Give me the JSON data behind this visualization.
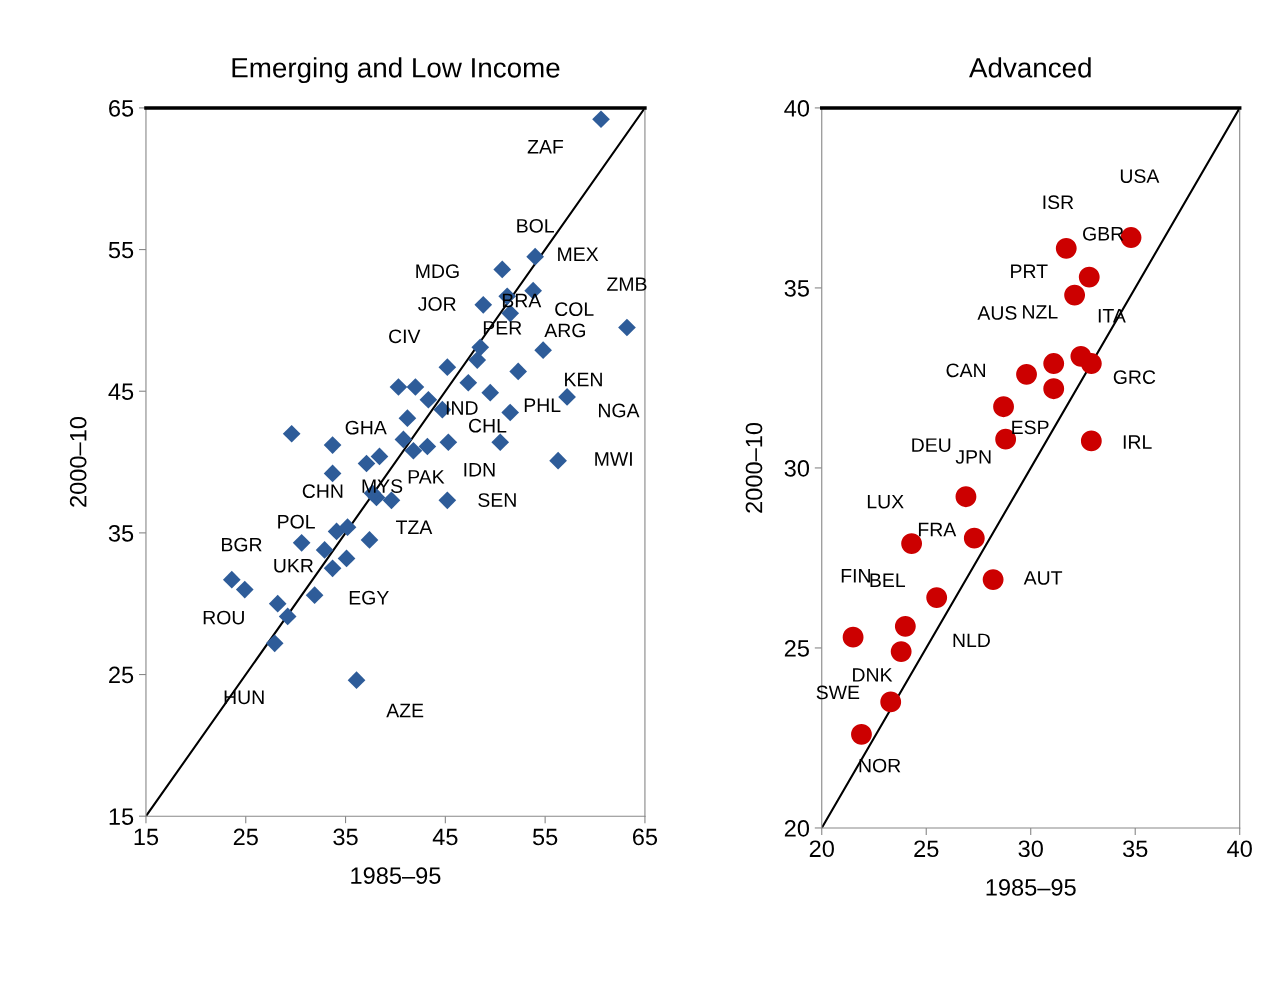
{
  "chart_data": [
    {
      "type": "scatter",
      "title": "Emerging and Low Income",
      "xlabel": "1985–95",
      "ylabel": "2000–10",
      "xlim": [
        15,
        65
      ],
      "ylim": [
        15,
        65
      ],
      "xticks": [
        15,
        25,
        35,
        45,
        55,
        65
      ],
      "yticks": [
        15,
        25,
        35,
        45,
        55,
        65
      ],
      "grid": false,
      "legend": false,
      "marker": "diamond",
      "series": [
        {
          "type": "scatter",
          "color": "#2e5c99",
          "x": [
            60.6,
            54.0,
            50.7,
            53.8,
            48.8,
            51.2,
            51.5,
            63.2,
            54.8,
            52.3,
            57.2,
            56.3,
            51.5,
            50.5,
            49.5,
            47.3,
            48.2,
            48.5,
            45.2,
            40.3,
            42.0,
            43.3,
            44.7,
            45.3,
            43.2,
            41.2,
            40.8,
            29.6,
            33.7,
            37.1,
            38.4,
            38.1,
            39.6,
            45.2,
            33.7,
            37.7,
            34.1,
            35.2,
            37.4,
            32.9,
            33.7,
            35.1,
            30.6,
            23.6,
            24.9,
            28.2,
            29.2,
            31.9,
            27.9,
            36.1,
            41.8
          ],
          "values": [
            64.2,
            54.5,
            53.6,
            52.1,
            51.1,
            51.7,
            50.5,
            49.5,
            47.9,
            46.4,
            44.6,
            40.1,
            43.5,
            41.4,
            44.9,
            45.6,
            47.2,
            48.1,
            46.7,
            45.3,
            45.3,
            44.4,
            43.7,
            41.4,
            41.1,
            43.1,
            41.6,
            42.0,
            41.2,
            39.9,
            40.4,
            37.5,
            37.3,
            37.3,
            39.2,
            37.8,
            35.1,
            35.4,
            34.5,
            33.8,
            32.5,
            33.2,
            34.3,
            31.7,
            31.0,
            30.0,
            29.1,
            30.6,
            27.2,
            24.6,
            40.8
          ]
        },
        {
          "type": "line",
          "color": "#000000",
          "marker": "none",
          "x": [
            15,
            65
          ],
          "values": [
            15,
            65
          ]
        }
      ],
      "annotations": [
        {
          "text": "ZAF",
          "x": 60.6,
          "y": 64.2
        },
        {
          "text": "BOL",
          "x": 54.0,
          "y": 54.5
        },
        {
          "text": "MEX",
          "x": 53.8,
          "y": 52.1
        },
        {
          "text": "ZMB",
          "x": 63.2,
          "y": 49.5
        },
        {
          "text": "MDG",
          "x": 48.8,
          "y": 51.1
        },
        {
          "text": "BRA",
          "x": 51.5,
          "y": 50.5
        },
        {
          "text": "COL",
          "x": 63.2,
          "y": 49.5
        },
        {
          "text": "JOR",
          "x": 48.5,
          "y": 48.1
        },
        {
          "text": "PER",
          "x": 48.2,
          "y": 47.2
        },
        {
          "text": "ARG",
          "x": 54.8,
          "y": 47.9
        },
        {
          "text": "CIV",
          "x": 45.2,
          "y": 46.7
        },
        {
          "text": "KEN",
          "x": 52.3,
          "y": 46.4
        },
        {
          "text": "NGA",
          "x": 57.2,
          "y": 44.6
        },
        {
          "text": "IND",
          "x": 44.7,
          "y": 43.7
        },
        {
          "text": "PHL",
          "x": 51.5,
          "y": 43.5
        },
        {
          "text": "GHA",
          "x": 41.2,
          "y": 43.1
        },
        {
          "text": "CHL",
          "x": 49.5,
          "y": 44.9
        },
        {
          "text": "IDN",
          "x": 50.5,
          "y": 41.4
        },
        {
          "text": "MWI",
          "x": 56.3,
          "y": 40.1
        },
        {
          "text": "PAK",
          "x": 41.8,
          "y": 40.8
        },
        {
          "text": "CHN",
          "x": 33.7,
          "y": 39.2
        },
        {
          "text": "MYS",
          "x": 38.1,
          "y": 37.5
        },
        {
          "text": "SEN",
          "x": 45.2,
          "y": 37.3
        },
        {
          "text": "POL",
          "x": 30.6,
          "y": 34.3
        },
        {
          "text": "TZA",
          "x": 37.4,
          "y": 34.5
        },
        {
          "text": "BGR",
          "x": 23.6,
          "y": 31.7
        },
        {
          "text": "UKR",
          "x": 24.9,
          "y": 31.0
        },
        {
          "text": "EGY",
          "x": 31.9,
          "y": 30.6
        },
        {
          "text": "ROU",
          "x": 29.2,
          "y": 29.1
        },
        {
          "text": "HUN",
          "x": 27.9,
          "y": 27.2
        },
        {
          "text": "AZE",
          "x": 36.1,
          "y": 24.6
        }
      ]
    },
    {
      "type": "scatter",
      "title": "Advanced",
      "xlabel": "1985–95",
      "ylabel": "2000–10",
      "xlim": [
        20,
        40
      ],
      "ylim": [
        20,
        40
      ],
      "xticks": [
        20,
        25,
        30,
        35,
        40
      ],
      "yticks": [
        20,
        25,
        30,
        35,
        40
      ],
      "grid": false,
      "legend": false,
      "marker": "circle",
      "series": [
        {
          "type": "scatter",
          "color": "#cc0000",
          "x": [
            34.8,
            31.7,
            32.8,
            32.1,
            32.4,
            32.9,
            31.1,
            31.1,
            29.8,
            28.7,
            28.8,
            32.9,
            26.9,
            27.3,
            24.3,
            28.2,
            25.5,
            24.0,
            23.8,
            21.5,
            23.3,
            21.9
          ],
          "values": [
            36.4,
            36.1,
            35.3,
            34.8,
            33.1,
            32.9,
            32.9,
            32.2,
            32.6,
            31.7,
            30.8,
            30.75,
            29.2,
            28.05,
            27.9,
            26.9,
            26.4,
            25.6,
            24.9,
            25.3,
            23.5,
            22.6
          ]
        },
        {
          "type": "line",
          "color": "#000000",
          "marker": "none",
          "x": [
            20,
            40
          ],
          "values": [
            20,
            40
          ]
        }
      ],
      "annotations": [
        {
          "text": "ISR",
          "x": 31.7,
          "y": 36.1
        },
        {
          "text": "USA",
          "x": 34.8,
          "y": 36.4
        },
        {
          "text": "GBR",
          "x": 32.8,
          "y": 35.3
        },
        {
          "text": "PRT",
          "x": 32.1,
          "y": 34.8
        },
        {
          "text": "ITA",
          "x": 32.4,
          "y": 33.1
        },
        {
          "text": "AUS",
          "x": 29.8,
          "y": 32.6
        },
        {
          "text": "NZL",
          "x": 31.1,
          "y": 32.9
        },
        {
          "text": "GRC",
          "x": 32.9,
          "y": 32.9
        },
        {
          "text": "CAN",
          "x": 28.7,
          "y": 31.7
        },
        {
          "text": "ESP",
          "x": 31.1,
          "y": 32.2
        },
        {
          "text": "IRL",
          "x": 32.9,
          "y": 30.75
        },
        {
          "text": "DEU",
          "x": 26.9,
          "y": 29.2
        },
        {
          "text": "JPN",
          "x": 28.8,
          "y": 30.8
        },
        {
          "text": "LUX",
          "x": 24.3,
          "y": 27.9
        },
        {
          "text": "FRA",
          "x": 27.3,
          "y": 28.05
        },
        {
          "text": "AUT",
          "x": 28.2,
          "y": 26.9
        },
        {
          "text": "FIN",
          "x": 21.5,
          "y": 25.3
        },
        {
          "text": "BEL",
          "x": 24.0,
          "y": 25.6
        },
        {
          "text": "NLD",
          "x": 25.5,
          "y": 26.4
        },
        {
          "text": "DNK",
          "x": 23.8,
          "y": 24.9
        },
        {
          "text": "SWE",
          "x": 21.9,
          "y": 22.6
        },
        {
          "text": "NOR",
          "x": 23.3,
          "y": 23.5
        }
      ]
    }
  ]
}
